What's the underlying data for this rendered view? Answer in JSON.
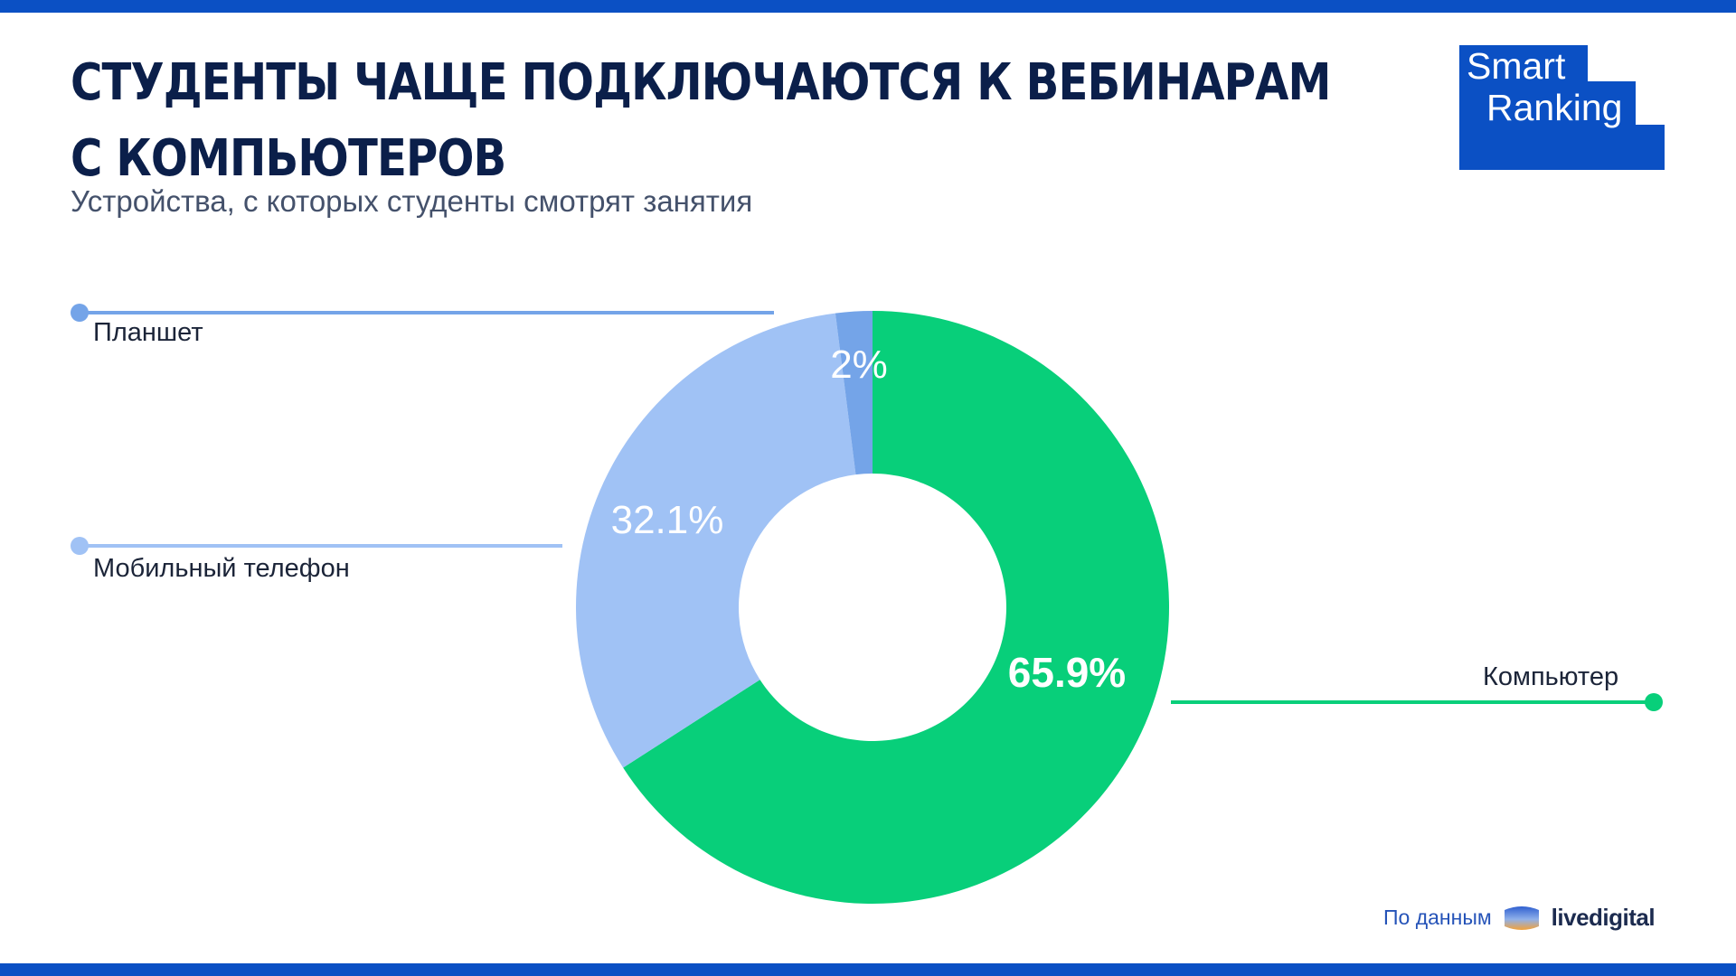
{
  "header": {
    "title_line1": "СТУДЕНТЫ ЧАЩЕ ПОДКЛЮЧАЮТСЯ К ВЕБИНАРАМ",
    "title_line2": "С КОМПЬЮТЕРОВ",
    "subtitle": "Устройства, с которых студенты смотрят занятия"
  },
  "logo": {
    "line1": "Smart",
    "line2": "Ranking",
    "color": "#0b50c4"
  },
  "chart_data": {
    "type": "pie",
    "subtype": "donut",
    "slices": [
      {
        "label": "Компьютер",
        "value": 65.9,
        "value_label": "65.9%",
        "color": "#08cf7a"
      },
      {
        "label": "Мобильный телефон",
        "value": 32.1,
        "value_label": "32.1%",
        "color": "#a0c2f5"
      },
      {
        "label": "Планшет",
        "value": 2,
        "value_label": "2%",
        "color": "#74a4e8"
      }
    ]
  },
  "source": {
    "prefix": "По данным",
    "brand": "livedigital"
  }
}
